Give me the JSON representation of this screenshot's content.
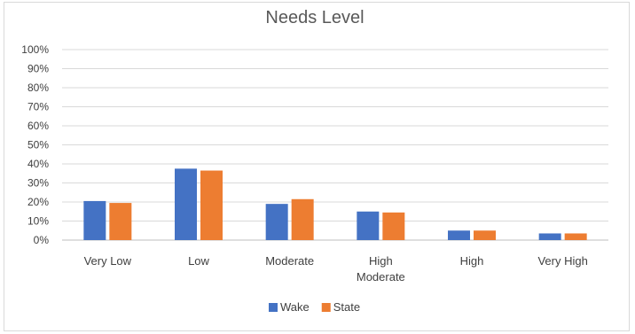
{
  "chart_data": {
    "type": "bar",
    "title": "Needs Level",
    "categories": [
      [
        "Very Low"
      ],
      [
        "Low"
      ],
      [
        "Moderate"
      ],
      [
        "High",
        "Moderate"
      ],
      [
        "High"
      ],
      [
        "Very High"
      ]
    ],
    "series": [
      {
        "name": "Wake",
        "color": "#4472c4",
        "values": [
          20.5,
          37.5,
          19,
          15,
          5,
          3.5
        ]
      },
      {
        "name": "State",
        "color": "#ed7d31",
        "values": [
          19.5,
          36.5,
          21.5,
          14.5,
          5,
          3.5
        ]
      }
    ],
    "ylim": [
      0,
      100
    ],
    "yticks": [
      "0%",
      "10%",
      "20%",
      "30%",
      "40%",
      "50%",
      "60%",
      "70%",
      "80%",
      "90%",
      "100%"
    ],
    "grid": true,
    "legend": "bottom"
  }
}
